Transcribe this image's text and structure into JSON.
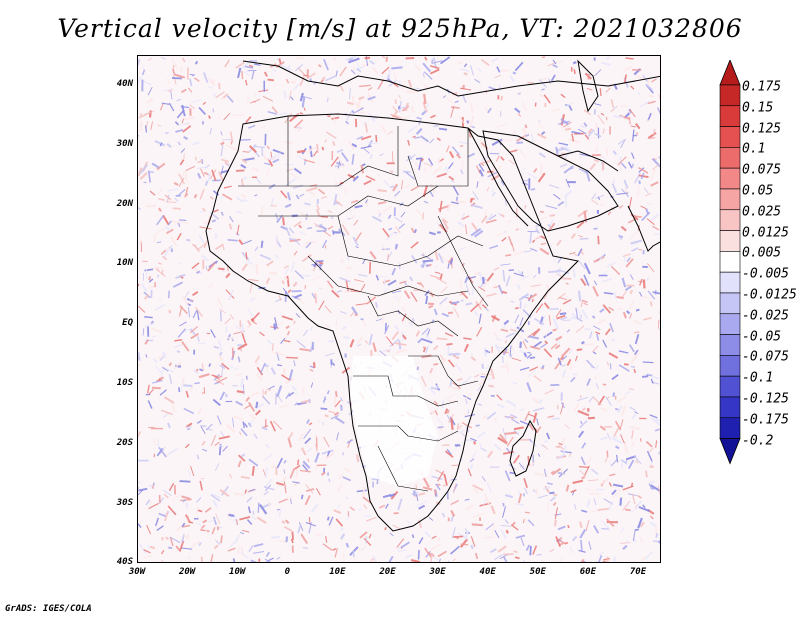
{
  "title": "Vertical velocity [m/s] at 925hPa, VT: 2021032806",
  "credit": "GrADS: IGES/COLA",
  "latitude_labels": [
    "40N",
    "30N",
    "20N",
    "10N",
    "EQ",
    "10S",
    "20S",
    "30S",
    "40S"
  ],
  "longitude_labels": [
    "30W",
    "20W",
    "10W",
    "0",
    "10E",
    "20E",
    "30E",
    "40E",
    "50E",
    "60E",
    "70E"
  ],
  "colorbar": {
    "labels": [
      "0.175",
      "0.15",
      "0.125",
      "0.1",
      "0.075",
      "0.05",
      "0.025",
      "0.0125",
      "0.005",
      "-0.005",
      "-0.0125",
      "-0.025",
      "-0.05",
      "-0.075",
      "-0.1",
      "-0.125",
      "-0.175",
      "-0.2"
    ],
    "colors": [
      "#b71c1c",
      "#c62828",
      "#d93a3a",
      "#e55050",
      "#ec6b6b",
      "#f28888",
      "#f6a5a5",
      "#f9c4c4",
      "#fbe0e0",
      "#ffffff",
      "#e1e1fb",
      "#c6c6f6",
      "#a9a9ef",
      "#8d8de7",
      "#7070de",
      "#5151d3",
      "#3535c6",
      "#2020b0",
      "#121296"
    ]
  }
}
